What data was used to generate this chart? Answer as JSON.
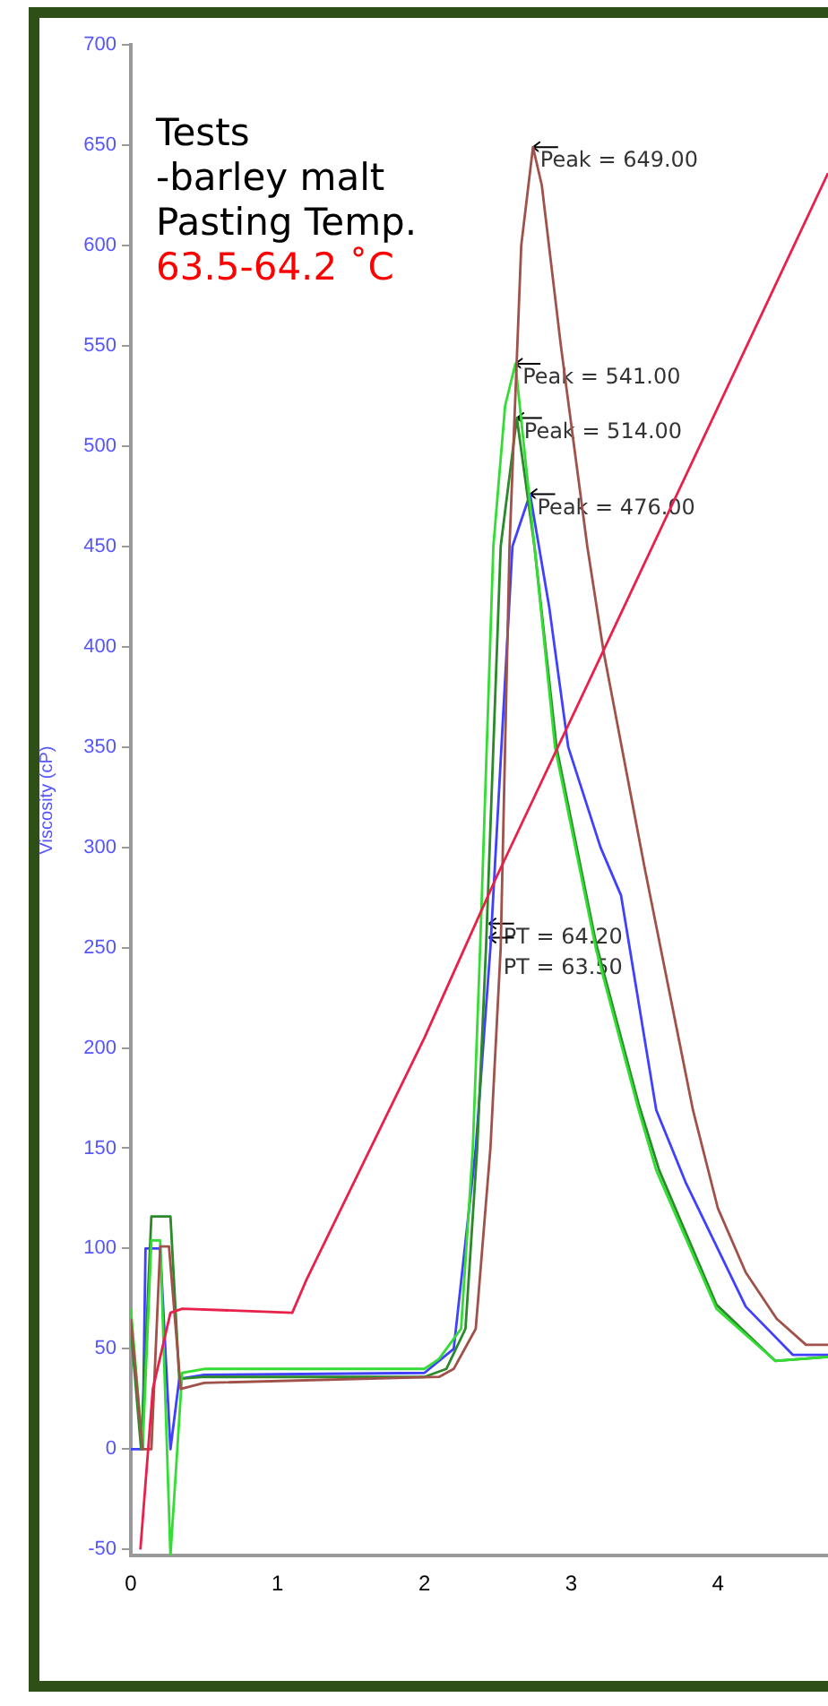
{
  "chart_data": {
    "type": "line",
    "title": "Tests\n-barley malt\nPasting Temp.",
    "subtitle": "63.5-64.2 ˚C",
    "ylabel": "Viscosity (cP)",
    "xlim": [
      0,
      4.75
    ],
    "xticks": [
      0,
      1,
      2,
      3,
      4
    ],
    "ylim": [
      -53,
      700
    ],
    "yticks": [
      -50,
      0,
      50,
      100,
      150,
      200,
      250,
      300,
      350,
      400,
      450,
      500,
      550,
      600,
      650,
      700
    ],
    "grid": false,
    "legend": false,
    "marker": "none",
    "line_style": "solid",
    "annotations": [
      {
        "text": "Peak = 649.00",
        "x": 2.74,
        "y": 649
      },
      {
        "text": "Peak = 541.00",
        "x": 2.62,
        "y": 541
      },
      {
        "text": "Peak = 514.00",
        "x": 2.63,
        "y": 514
      },
      {
        "text": "Peak = 476.00",
        "x": 2.72,
        "y": 476
      },
      {
        "text": "PT = 64.20",
        "x": 2.44,
        "y": 262
      },
      {
        "text": "PT = 63.50",
        "x": 2.44,
        "y": 255
      }
    ],
    "series": [
      {
        "color": "#e8204a",
        "x": [
          0.065,
          0.15,
          0.27,
          0.35,
          1.1,
          1.2,
          2.0,
          2.49,
          3.22,
          4.75
        ],
        "values": [
          -50,
          30,
          68,
          70,
          68,
          85,
          205,
          285,
          398,
          636
        ]
      },
      {
        "color": "#a0524a",
        "x": [
          0,
          0.08,
          0.14,
          0.2,
          0.26,
          0.34,
          0.5,
          2.1,
          2.2,
          2.35,
          2.45,
          2.52,
          2.58,
          2.66,
          2.74,
          2.8,
          2.93,
          3.11,
          3.22,
          3.5,
          3.83,
          4.0,
          4.19,
          4.4,
          4.6,
          4.75
        ],
        "values": [
          65,
          0,
          0,
          101,
          101,
          30,
          33,
          36,
          40,
          60,
          150,
          250,
          450,
          600,
          649,
          630,
          550,
          450,
          398,
          290,
          169,
          120,
          88,
          65,
          52,
          52
        ]
      },
      {
        "color": "#33dd33",
        "x": [
          0,
          0.08,
          0.14,
          0.2,
          0.27,
          0.35,
          0.5,
          2.0,
          2.1,
          2.25,
          2.33,
          2.38,
          2.47,
          2.55,
          2.62,
          2.75,
          2.89,
          3.17,
          3.46,
          3.58,
          3.99,
          4.39,
          4.75
        ],
        "values": [
          70,
          0,
          104,
          104,
          -53,
          38,
          40,
          40,
          45,
          60,
          150,
          250,
          450,
          520,
          541,
          450,
          350,
          249,
          169,
          139,
          70,
          44,
          46
        ]
      },
      {
        "color": "#2a8a2a",
        "x": [
          0,
          0.07,
          0.14,
          0.27,
          0.33,
          0.5,
          2.0,
          2.15,
          2.28,
          2.36,
          2.42,
          2.52,
          2.63,
          2.75,
          2.9,
          3.17,
          3.46,
          3.6,
          3.99,
          4.39,
          4.75
        ],
        "values": [
          60,
          0,
          116,
          116,
          35,
          36,
          36,
          40,
          60,
          150,
          250,
          450,
          514,
          450,
          350,
          252,
          172,
          139,
          72,
          44,
          46
        ]
      },
      {
        "color": "#4040ff",
        "x": [
          0,
          0.08,
          0.1,
          0.2,
          0.27,
          0.33,
          0.5,
          2.0,
          2.2,
          2.35,
          2.45,
          2.6,
          2.72,
          2.85,
          2.98,
          3.2,
          3.34,
          3.58,
          3.78,
          4.19,
          4.51,
          4.75
        ],
        "values": [
          0,
          0,
          100,
          100,
          0,
          35,
          37,
          38,
          50,
          150,
          250,
          450,
          476,
          420,
          350,
          300,
          276,
          169,
          133,
          71,
          47,
          47
        ]
      }
    ]
  }
}
